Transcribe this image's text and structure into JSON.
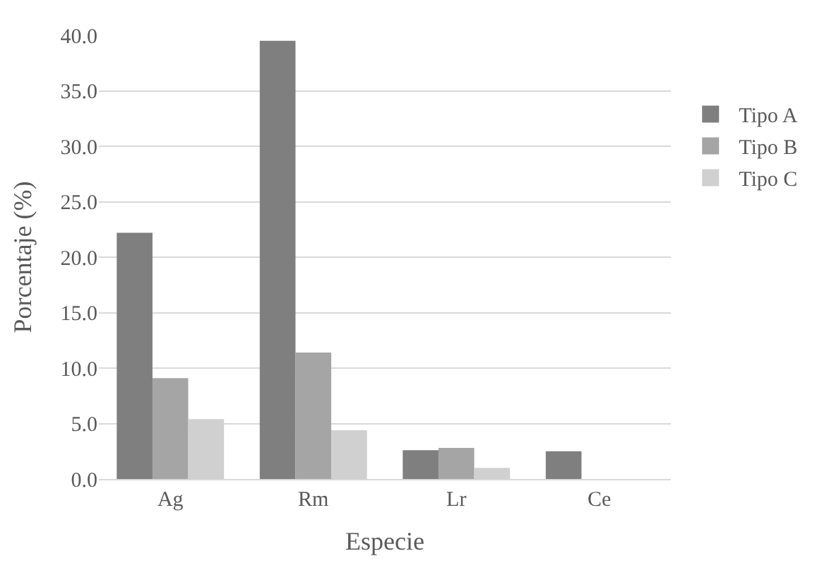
{
  "chart_data": {
    "type": "bar",
    "xlabel": "Especie",
    "ylabel": "Porcentaje (%)",
    "categories": [
      "Ag",
      "Rm",
      "Lr",
      "Ce"
    ],
    "series": [
      {
        "name": "Tipo A",
        "color": "#7f7f7f",
        "values": [
          22.2,
          39.5,
          2.6,
          2.5
        ]
      },
      {
        "name": "Tipo B",
        "color": "#a5a5a5",
        "values": [
          9.1,
          11.4,
          2.8,
          0.0
        ]
      },
      {
        "name": "Tipo C",
        "color": "#d0d0d0",
        "values": [
          5.4,
          4.4,
          1.0,
          0.0
        ]
      }
    ],
    "ylim": [
      0,
      40
    ],
    "yticks": [
      {
        "value": 0,
        "label": "0.0"
      },
      {
        "value": 5,
        "label": "5.0"
      },
      {
        "value": 10,
        "label": "10.0"
      },
      {
        "value": 15,
        "label": "15.0"
      },
      {
        "value": 20,
        "label": "20.0"
      },
      {
        "value": 25,
        "label": "25.0"
      },
      {
        "value": 30,
        "label": "30.0"
      },
      {
        "value": 35,
        "label": "35.0"
      },
      {
        "value": 40,
        "label": "40.0"
      }
    ],
    "grid": "y",
    "legend": "right"
  }
}
